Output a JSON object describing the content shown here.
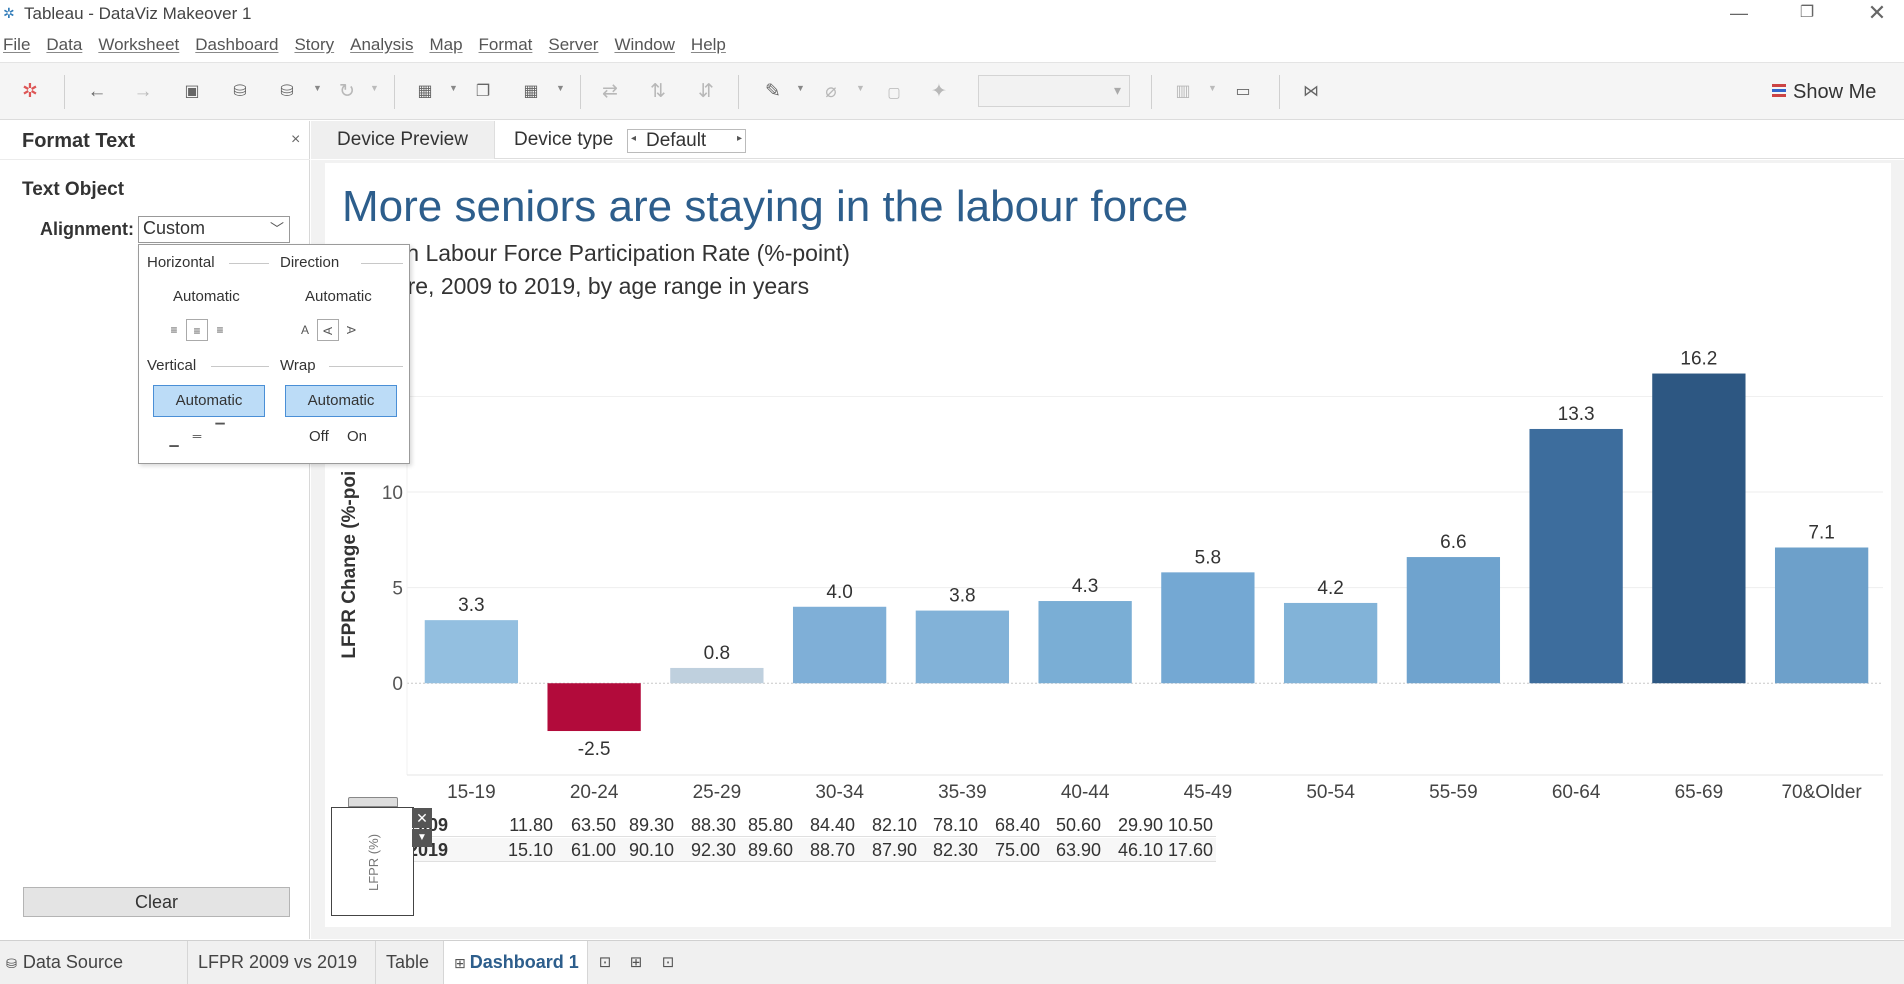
{
  "window": {
    "title": "Tableau - DataViz Makeover 1"
  },
  "menu": [
    "File",
    "Data",
    "Worksheet",
    "Dashboard",
    "Story",
    "Analysis",
    "Map",
    "Format",
    "Server",
    "Window",
    "Help"
  ],
  "toolbar": {
    "show_me": "Show Me"
  },
  "format_pane": {
    "title": "Format Text",
    "close": "×",
    "section": "Text Object",
    "alignment_label": "Alignment:",
    "alignment_value": "Custom",
    "clear": "Clear",
    "popup": {
      "horizontal": "Horizontal",
      "direction": "Direction",
      "horizontal_value": "Automatic",
      "direction_value": "Automatic",
      "direction_options": [
        "A",
        "A",
        "A"
      ],
      "vertical": "Vertical",
      "wrap": "Wrap",
      "vertical_value": "Automatic",
      "wrap_value": "Automatic",
      "wrap_off": "Off",
      "wrap_on": "On"
    }
  },
  "device_bar": {
    "preview": "Device Preview",
    "device_type_label": "Device type",
    "device_type_value": "Default"
  },
  "dashboard": {
    "title": "More seniors are staying in the labour force",
    "subtitle_1": "e in Labour Force Participation Rate (%-point)",
    "subtitle_2": "pore, 2009 to 2019, by age range in years"
  },
  "chart_data": {
    "type": "bar",
    "ylabel": "LFPR Change (%-poi",
    "ylim": [
      -4.8,
      19
    ],
    "yticks": [
      0,
      5,
      10
    ],
    "categories": [
      "15-19",
      "20-24",
      "25-29",
      "30-34",
      "35-39",
      "40-44",
      "45-49",
      "50-54",
      "55-59",
      "60-64",
      "65-69",
      "70&Older"
    ],
    "values": [
      3.3,
      -2.5,
      0.8,
      4.0,
      3.8,
      4.3,
      5.8,
      4.2,
      6.6,
      13.3,
      16.2,
      7.1
    ],
    "labels": [
      "3.3",
      "-2.5",
      "0.8",
      "4.0",
      "3.8",
      "4.3",
      "5.8",
      "4.2",
      "6.6",
      "13.3",
      "16.2",
      "7.1"
    ],
    "colors": [
      "#93bfe0",
      "#b20b3b",
      "#bfd0de",
      "#7fafd7",
      "#82b2d8",
      "#7aaed5",
      "#74a8d3",
      "#82b3d8",
      "#6fa3ce",
      "#3d6d9d",
      "#2d5782",
      "#6da0ca"
    ]
  },
  "table": {
    "rows": [
      {
        "year": "2009",
        "values": [
          "11.80",
          "63.50",
          "89.30",
          "88.30",
          "85.80",
          "84.40",
          "82.10",
          "78.10",
          "68.40",
          "50.60",
          "29.90",
          "10.50"
        ]
      },
      {
        "year": "2019",
        "values": [
          "15.10",
          "61.00",
          "90.10",
          "92.30",
          "89.60",
          "88.70",
          "87.90",
          "82.30",
          "75.00",
          "63.90",
          "46.10",
          "17.60"
        ]
      }
    ]
  },
  "legend": {
    "label": "LFPR (%)"
  },
  "sheet_tabs": {
    "data_source": "Data Source",
    "tabs": [
      "LFPR 2009 vs 2019",
      "Table",
      "Dashboard 1"
    ]
  }
}
